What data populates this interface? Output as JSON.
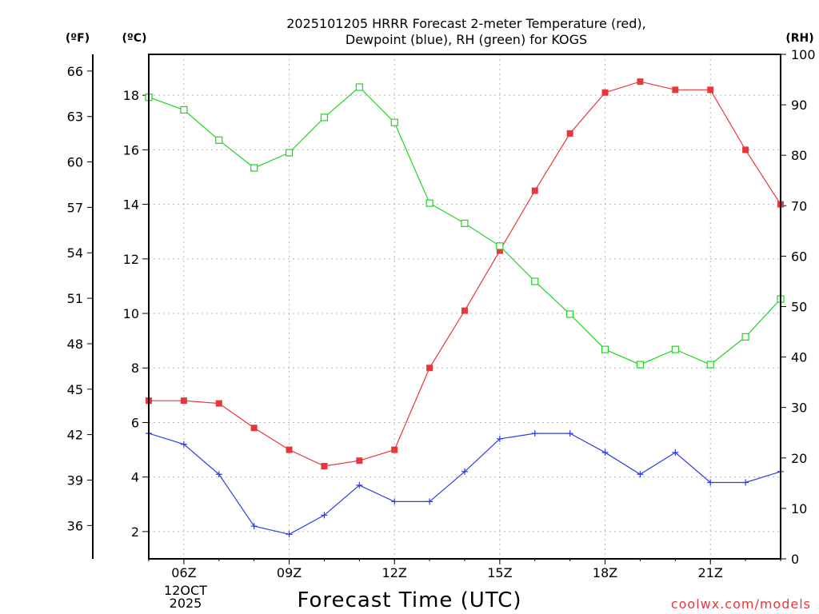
{
  "chart_data": {
    "type": "line",
    "title_line1": "2025101205 HRRR Forecast 2-meter Temperature (red),",
    "title_line2": "Dewpoint (blue), RH (green) for KOGS",
    "xlabel": "Forecast Time (UTC)",
    "watermark": "coolwx.com/models",
    "unit_left_f": "(ºF)",
    "unit_left_c": "(ºC)",
    "unit_right": "(RH)",
    "date_label_line1": "12OCT",
    "date_label_line2": "2025",
    "x_hours": [
      5,
      6,
      7,
      8,
      9,
      10,
      11,
      12,
      13,
      14,
      15,
      16,
      17,
      18,
      19,
      20,
      21,
      22,
      23
    ],
    "x_ticks": [
      {
        "hour": 6,
        "label": "06Z"
      },
      {
        "hour": 9,
        "label": "09Z"
      },
      {
        "hour": 12,
        "label": "12Z"
      },
      {
        "hour": 15,
        "label": "15Z"
      },
      {
        "hour": 18,
        "label": "18Z"
      },
      {
        "hour": 21,
        "label": "21Z"
      }
    ],
    "xlim": [
      5,
      23
    ],
    "y_celsius": {
      "lim": [
        1,
        19.5
      ],
      "ticks": [
        2,
        4,
        6,
        8,
        10,
        12,
        14,
        16,
        18
      ]
    },
    "y_fahrenheit": {
      "ticks": [
        36,
        39,
        42,
        45,
        48,
        51,
        54,
        57,
        60,
        63,
        66
      ]
    },
    "y_rh": {
      "lim": [
        0,
        100
      ],
      "ticks": [
        0,
        10,
        20,
        30,
        40,
        50,
        60,
        70,
        80,
        90,
        100
      ]
    },
    "series": [
      {
        "name": "Temperature",
        "axis": "celsius",
        "color": "#e8373a",
        "marker": "filled-square",
        "values": [
          6.8,
          6.8,
          6.7,
          5.8,
          5.0,
          4.4,
          4.6,
          5.0,
          8.0,
          10.1,
          12.3,
          14.5,
          16.6,
          18.1,
          18.5,
          18.2,
          18.2,
          16.0,
          14.0
        ]
      },
      {
        "name": "Dewpoint",
        "axis": "celsius",
        "color": "#2a3ee6",
        "marker": "plus",
        "values": [
          5.6,
          5.2,
          4.1,
          2.2,
          1.9,
          2.6,
          3.7,
          3.1,
          3.1,
          4.2,
          5.4,
          5.6,
          5.6,
          4.9,
          4.1,
          4.9,
          3.8,
          3.8,
          4.2
        ]
      },
      {
        "name": "RH",
        "axis": "rh",
        "color": "#1ed61e",
        "marker": "hollow-square",
        "values": [
          91.5,
          89,
          83,
          77.5,
          80.5,
          87.5,
          93.5,
          86.5,
          70.5,
          66.5,
          62,
          55,
          48.5,
          41.5,
          38.5,
          41.5,
          38.5,
          44,
          51.5
        ]
      }
    ]
  }
}
